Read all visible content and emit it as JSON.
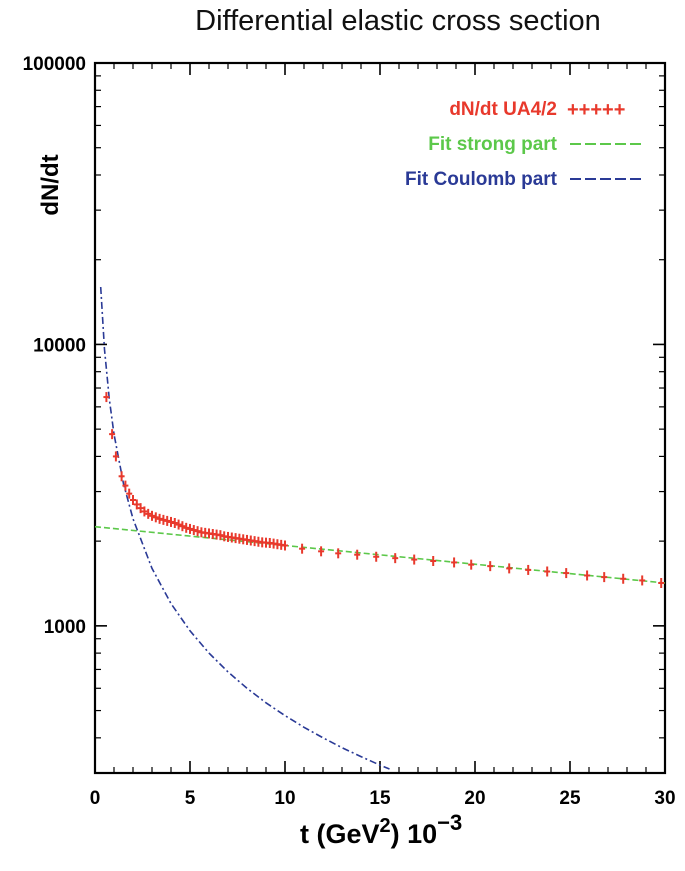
{
  "chart_data": {
    "type": "scatter",
    "title": "Differential elastic cross section",
    "ylabel": "dN/dt",
    "xlabel": {
      "prefix": "t  (GeV",
      "exponent": "2",
      "suffix": ") 10",
      "power": "−3"
    },
    "x_scale": "linear",
    "y_scale": "log",
    "xlim": [
      0,
      30
    ],
    "ylim": [
      300,
      100000
    ],
    "x_ticks": [
      0,
      5,
      10,
      15,
      20,
      25,
      30
    ],
    "y_tick_labels": [
      "100000",
      "10000",
      "1000"
    ],
    "y_label_values": [
      100000,
      10000,
      1000
    ],
    "grid": false,
    "legend_position": "top-right",
    "colors": {
      "data": "#e8392c",
      "strong": "#5cc84a",
      "coulomb": "#2a3a96",
      "axis": "#000000"
    },
    "series": [
      {
        "name": "dN/dt  UA4/2",
        "legend_marker": "+++++",
        "kind": "points",
        "x": [
          0.6,
          0.9,
          1.1,
          1.4,
          1.6,
          1.8,
          2.0,
          2.2,
          2.4,
          2.6,
          2.8,
          3.0,
          3.2,
          3.4,
          3.6,
          3.8,
          4.0,
          4.2,
          4.4,
          4.6,
          4.8,
          5.0,
          5.2,
          5.4,
          5.6,
          5.8,
          6.0,
          6.2,
          6.4,
          6.6,
          6.8,
          7.0,
          7.2,
          7.4,
          7.6,
          7.8,
          8.0,
          8.2,
          8.4,
          8.6,
          8.8,
          9.0,
          9.2,
          9.4,
          9.6,
          9.8,
          10.0,
          10.9,
          11.9,
          12.8,
          13.8,
          14.8,
          15.8,
          16.8,
          17.8,
          18.9,
          19.8,
          20.8,
          21.8,
          22.8,
          23.8,
          24.8,
          25.9,
          26.8,
          27.8,
          28.8,
          29.8
        ],
        "y": [
          6500,
          4800,
          4000,
          3400,
          3150,
          2950,
          2800,
          2700,
          2620,
          2550,
          2500,
          2460,
          2430,
          2400,
          2380,
          2360,
          2340,
          2320,
          2290,
          2260,
          2230,
          2210,
          2190,
          2170,
          2150,
          2140,
          2130,
          2120,
          2110,
          2100,
          2080,
          2070,
          2060,
          2050,
          2040,
          2030,
          2020,
          2010,
          2000,
          1990,
          1980,
          1975,
          1970,
          1960,
          1950,
          1940,
          1930,
          1880,
          1840,
          1810,
          1790,
          1760,
          1740,
          1720,
          1700,
          1680,
          1650,
          1630,
          1600,
          1580,
          1560,
          1540,
          1510,
          1490,
          1470,
          1450,
          1420
        ]
      },
      {
        "name": "Fit strong part",
        "legend_marker": "-----",
        "kind": "line",
        "x": [
          0,
          30
        ],
        "y": [
          2250,
          1420
        ]
      },
      {
        "name": "Fit Coulomb part",
        "legend_marker": "-----",
        "kind": "line",
        "x": [
          0.3,
          0.5,
          0.75,
          1.0,
          1.5,
          2.0,
          3.0,
          4.0,
          5.0,
          6.0,
          7.0,
          8.0,
          9.0,
          10.0,
          11.0,
          12.0,
          13.0,
          14.0,
          15.0,
          15.5
        ],
        "y": [
          16000,
          9600,
          6400,
          4800,
          3200,
          2400,
          1600,
          1200,
          960,
          800,
          686,
          600,
          533,
          480,
          436,
          400,
          369,
          343,
          320,
          310
        ]
      }
    ]
  }
}
